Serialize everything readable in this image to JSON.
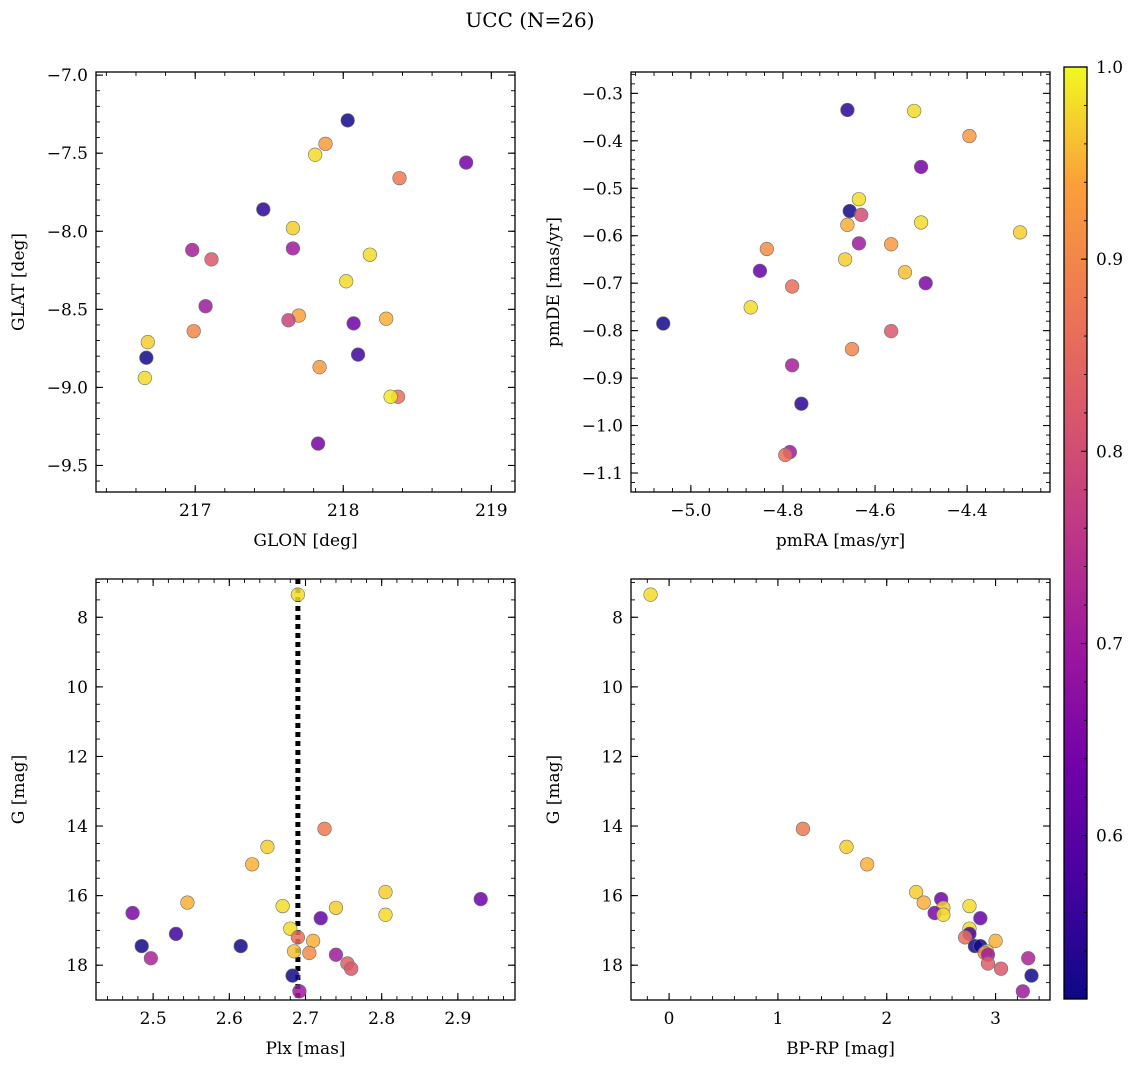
{
  "figure_title": "UCC (N=26)",
  "colors": {
    "colormap": "plasma",
    "point_alpha": 0.85,
    "reference_line": "#000000"
  },
  "chart_data": [
    {
      "id": "glon_glat",
      "type": "scatter",
      "xlabel": "GLON [deg]",
      "ylabel": "GLAT [deg]",
      "xlim": [
        216.33,
        219.16
      ],
      "ylim": [
        -9.67,
        -6.98
      ],
      "y_inverted": false,
      "xticks": [
        217,
        218,
        219
      ],
      "yticks": [
        -9.5,
        -9.0,
        -8.5,
        -8.0,
        -7.5,
        -7.0
      ],
      "xticklabels": [
        "217",
        "218",
        "219"
      ],
      "yticklabels": [
        "−9.5",
        "−9.0",
        "−8.5",
        "−8.0",
        "−7.5",
        "−7.0"
      ],
      "xminor": 0.2,
      "yminor": 0.1,
      "grid": false,
      "points": [
        {
          "x": 218.03,
          "y": -7.29,
          "c": 0.52
        },
        {
          "x": 217.88,
          "y": -7.44,
          "c": 0.93
        },
        {
          "x": 217.81,
          "y": -7.51,
          "c": 0.98
        },
        {
          "x": 218.83,
          "y": -7.56,
          "c": 0.64
        },
        {
          "x": 218.38,
          "y": -7.66,
          "c": 0.88
        },
        {
          "x": 217.46,
          "y": -7.86,
          "c": 0.55
        },
        {
          "x": 217.66,
          "y": -7.98,
          "c": 0.97
        },
        {
          "x": 216.98,
          "y": -8.12,
          "c": 0.71
        },
        {
          "x": 217.66,
          "y": -8.11,
          "c": 0.7
        },
        {
          "x": 217.11,
          "y": -8.18,
          "c": 0.82
        },
        {
          "x": 218.18,
          "y": -8.15,
          "c": 0.98
        },
        {
          "x": 218.02,
          "y": -8.32,
          "c": 0.98
        },
        {
          "x": 217.07,
          "y": -8.48,
          "c": 0.7
        },
        {
          "x": 217.7,
          "y": -8.54,
          "c": 0.94
        },
        {
          "x": 217.63,
          "y": -8.57,
          "c": 0.78
        },
        {
          "x": 218.29,
          "y": -8.56,
          "c": 0.95
        },
        {
          "x": 218.07,
          "y": -8.59,
          "c": 0.63
        },
        {
          "x": 216.99,
          "y": -8.64,
          "c": 0.9
        },
        {
          "x": 216.68,
          "y": -8.71,
          "c": 0.97
        },
        {
          "x": 218.1,
          "y": -8.79,
          "c": 0.57
        },
        {
          "x": 216.67,
          "y": -8.81,
          "c": 0.52
        },
        {
          "x": 217.84,
          "y": -8.87,
          "c": 0.93
        },
        {
          "x": 216.66,
          "y": -8.94,
          "c": 0.98
        },
        {
          "x": 218.37,
          "y": -9.06,
          "c": 0.86
        },
        {
          "x": 218.32,
          "y": -9.06,
          "c": 0.99
        },
        {
          "x": 217.83,
          "y": -9.36,
          "c": 0.64
        }
      ]
    },
    {
      "id": "pmra_pmde",
      "type": "scatter",
      "xlabel": "pmRA [mas/yr]",
      "ylabel": "pmDE [mas/yr]",
      "xlim": [
        -5.13,
        -4.22
      ],
      "ylim": [
        -1.14,
        -0.255
      ],
      "y_inverted": false,
      "xticks": [
        -5.0,
        -4.8,
        -4.6,
        -4.4
      ],
      "yticks": [
        -1.1,
        -1.0,
        -0.9,
        -0.8,
        -0.7,
        -0.6,
        -0.5,
        -0.4,
        -0.3
      ],
      "xticklabels": [
        "−5.0",
        "−4.8",
        "−4.6",
        "−4.4"
      ],
      "yticklabels": [
        "−1.1",
        "−1.0",
        "−0.9",
        "−0.8",
        "−0.7",
        "−0.6",
        "−0.5",
        "−0.4",
        "−0.3"
      ],
      "xminor": 0.04,
      "yminor": 0.02,
      "grid": false,
      "points": [
        {
          "x": -4.66,
          "y": -0.335,
          "c": 0.55
        },
        {
          "x": -4.515,
          "y": -0.337,
          "c": 0.98
        },
        {
          "x": -4.395,
          "y": -0.39,
          "c": 0.93
        },
        {
          "x": -4.5,
          "y": -0.455,
          "c": 0.64
        },
        {
          "x": -4.635,
          "y": -0.523,
          "c": 0.98
        },
        {
          "x": -4.655,
          "y": -0.548,
          "c": 0.52
        },
        {
          "x": -4.63,
          "y": -0.556,
          "c": 0.8
        },
        {
          "x": -4.5,
          "y": -0.572,
          "c": 0.98
        },
        {
          "x": -4.66,
          "y": -0.577,
          "c": 0.95
        },
        {
          "x": -4.285,
          "y": -0.593,
          "c": 0.97
        },
        {
          "x": -4.635,
          "y": -0.616,
          "c": 0.7
        },
        {
          "x": -4.565,
          "y": -0.618,
          "c": 0.93
        },
        {
          "x": -4.835,
          "y": -0.628,
          "c": 0.91
        },
        {
          "x": -4.665,
          "y": -0.65,
          "c": 0.97
        },
        {
          "x": -4.85,
          "y": -0.674,
          "c": 0.62
        },
        {
          "x": -4.535,
          "y": -0.677,
          "c": 0.96
        },
        {
          "x": -4.49,
          "y": -0.7,
          "c": 0.65
        },
        {
          "x": -4.78,
          "y": -0.707,
          "c": 0.86
        },
        {
          "x": -4.87,
          "y": -0.751,
          "c": 0.98
        },
        {
          "x": -5.06,
          "y": -0.785,
          "c": 0.52
        },
        {
          "x": -4.565,
          "y": -0.801,
          "c": 0.82
        },
        {
          "x": -4.65,
          "y": -0.839,
          "c": 0.9
        },
        {
          "x": -4.78,
          "y": -0.873,
          "c": 0.71
        },
        {
          "x": -4.76,
          "y": -0.954,
          "c": 0.55
        },
        {
          "x": -4.785,
          "y": -1.056,
          "c": 0.7
        },
        {
          "x": -4.795,
          "y": -1.062,
          "c": 0.86
        }
      ]
    },
    {
      "id": "plx_g",
      "type": "scatter",
      "xlabel": "Plx [mas]",
      "ylabel": "G [mag]",
      "xlim": [
        2.425,
        2.975
      ],
      "ylim": [
        19.0,
        6.9
      ],
      "y_inverted": true,
      "xticks": [
        2.5,
        2.6,
        2.7,
        2.8,
        2.9
      ],
      "yticks": [
        8,
        10,
        12,
        14,
        16,
        18
      ],
      "xticklabels": [
        "2.5",
        "2.6",
        "2.7",
        "2.8",
        "2.9"
      ],
      "yticklabels": [
        "8",
        "10",
        "12",
        "14",
        "16",
        "18"
      ],
      "xminor": 0.02,
      "yminor": 0.5,
      "grid": false,
      "reference_line": {
        "x": 2.69,
        "style": "dotted"
      },
      "points": [
        {
          "x": 2.69,
          "y": 7.35,
          "c": 0.98
        },
        {
          "x": 2.725,
          "y": 14.08,
          "c": 0.88
        },
        {
          "x": 2.65,
          "y": 14.6,
          "c": 0.97
        },
        {
          "x": 2.63,
          "y": 15.1,
          "c": 0.95
        },
        {
          "x": 2.805,
          "y": 15.9,
          "c": 0.97
        },
        {
          "x": 2.93,
          "y": 16.1,
          "c": 0.63
        },
        {
          "x": 2.545,
          "y": 16.2,
          "c": 0.95
        },
        {
          "x": 2.67,
          "y": 16.3,
          "c": 0.98
        },
        {
          "x": 2.74,
          "y": 16.35,
          "c": 0.97
        },
        {
          "x": 2.473,
          "y": 16.5,
          "c": 0.65
        },
        {
          "x": 2.805,
          "y": 16.55,
          "c": 0.98
        },
        {
          "x": 2.72,
          "y": 16.65,
          "c": 0.62
        },
        {
          "x": 2.68,
          "y": 16.95,
          "c": 0.98
        },
        {
          "x": 2.53,
          "y": 17.1,
          "c": 0.57
        },
        {
          "x": 2.69,
          "y": 17.2,
          "c": 0.86
        },
        {
          "x": 2.71,
          "y": 17.3,
          "c": 0.95
        },
        {
          "x": 2.485,
          "y": 17.45,
          "c": 0.52
        },
        {
          "x": 2.615,
          "y": 17.45,
          "c": 0.52
        },
        {
          "x": 2.685,
          "y": 17.6,
          "c": 0.96
        },
        {
          "x": 2.705,
          "y": 17.65,
          "c": 0.91
        },
        {
          "x": 2.74,
          "y": 17.7,
          "c": 0.7
        },
        {
          "x": 2.497,
          "y": 17.8,
          "c": 0.72
        },
        {
          "x": 2.755,
          "y": 17.95,
          "c": 0.83
        },
        {
          "x": 2.76,
          "y": 18.1,
          "c": 0.82
        },
        {
          "x": 2.683,
          "y": 18.3,
          "c": 0.52
        },
        {
          "x": 2.692,
          "y": 18.75,
          "c": 0.7
        }
      ]
    },
    {
      "id": "bprp_g",
      "type": "scatter",
      "xlabel": "BP-RP [mag]",
      "ylabel": "G [mag]",
      "xlim": [
        -0.35,
        3.5
      ],
      "ylim": [
        19.0,
        6.9
      ],
      "y_inverted": true,
      "xticks": [
        0,
        1,
        2,
        3
      ],
      "yticks": [
        8,
        10,
        12,
        14,
        16,
        18
      ],
      "xticklabels": [
        "0",
        "1",
        "2",
        "3"
      ],
      "yticklabels": [
        "8",
        "10",
        "12",
        "14",
        "16",
        "18"
      ],
      "xminor": 0.2,
      "yminor": 0.5,
      "grid": false,
      "points": [
        {
          "x": -0.17,
          "y": 7.35,
          "c": 0.98
        },
        {
          "x": 1.23,
          "y": 14.08,
          "c": 0.88
        },
        {
          "x": 1.63,
          "y": 14.6,
          "c": 0.97
        },
        {
          "x": 1.82,
          "y": 15.1,
          "c": 0.95
        },
        {
          "x": 2.27,
          "y": 15.9,
          "c": 0.97
        },
        {
          "x": 2.5,
          "y": 16.1,
          "c": 0.63
        },
        {
          "x": 2.34,
          "y": 16.2,
          "c": 0.95
        },
        {
          "x": 2.76,
          "y": 16.3,
          "c": 0.98
        },
        {
          "x": 2.52,
          "y": 16.35,
          "c": 0.97
        },
        {
          "x": 2.44,
          "y": 16.5,
          "c": 0.65
        },
        {
          "x": 2.52,
          "y": 16.55,
          "c": 0.98
        },
        {
          "x": 2.86,
          "y": 16.65,
          "c": 0.62
        },
        {
          "x": 2.76,
          "y": 16.95,
          "c": 0.98
        },
        {
          "x": 2.76,
          "y": 17.1,
          "c": 0.57
        },
        {
          "x": 2.72,
          "y": 17.2,
          "c": 0.86
        },
        {
          "x": 3.0,
          "y": 17.3,
          "c": 0.95
        },
        {
          "x": 2.81,
          "y": 17.45,
          "c": 0.52
        },
        {
          "x": 2.86,
          "y": 17.45,
          "c": 0.52
        },
        {
          "x": 2.92,
          "y": 17.6,
          "c": 0.96
        },
        {
          "x": 2.9,
          "y": 17.65,
          "c": 0.91
        },
        {
          "x": 2.93,
          "y": 17.7,
          "c": 0.7
        },
        {
          "x": 3.3,
          "y": 17.8,
          "c": 0.72
        },
        {
          "x": 2.93,
          "y": 17.95,
          "c": 0.83
        },
        {
          "x": 3.05,
          "y": 18.1,
          "c": 0.82
        },
        {
          "x": 3.33,
          "y": 18.3,
          "c": 0.52
        },
        {
          "x": 3.25,
          "y": 18.75,
          "c": 0.7
        }
      ]
    }
  ],
  "colorbar": {
    "vmin": 0.515,
    "vmax": 1.0,
    "ticks": [
      0.6,
      0.7,
      0.8,
      0.9,
      1.0
    ],
    "ticklabels": [
      "0.6",
      "0.7",
      "0.8",
      "0.9",
      "1.0"
    ],
    "minor": 0.02
  }
}
